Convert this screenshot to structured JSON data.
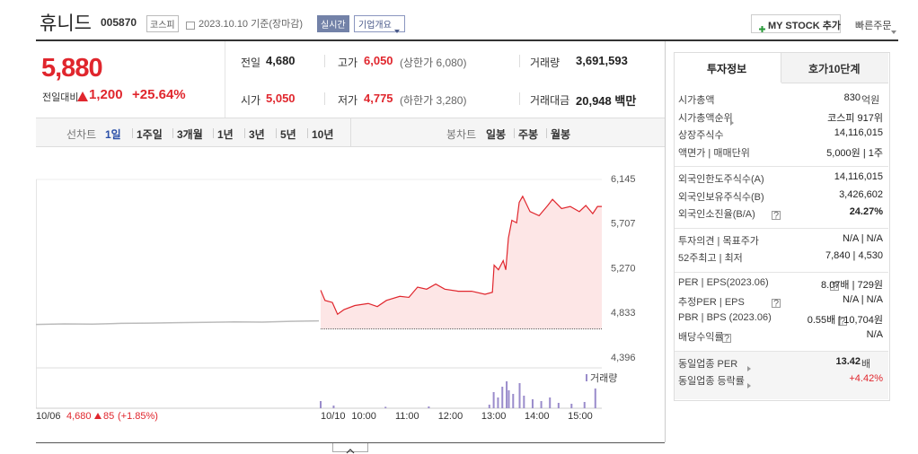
{
  "header": {
    "name": "휴니드",
    "code": "005870",
    "market": "코스피",
    "date": "2023.10.10 기준(장마감)",
    "realtime": "실시간",
    "overview": "기업개요",
    "mystock": "MY STOCK 추가",
    "quick_order": "빠른주문"
  },
  "price": {
    "current": "5,880",
    "change_label": "전일대비",
    "change": "1,200",
    "rate": "+25.64%"
  },
  "summary": [
    [
      {
        "label": "전일",
        "value": "4,680"
      },
      {
        "label": "고가",
        "value": "6,050",
        "note": "(상한가 6,080)"
      },
      {
        "label": "거래량",
        "value": "3,691,593"
      }
    ],
    [
      {
        "label": "시가",
        "value": "5,050"
      },
      {
        "label": "저가",
        "value": "4,775",
        "note": "(하한가 3,280)"
      },
      {
        "label": "거래대금",
        "value": "20,948 백만"
      }
    ]
  ],
  "tabs": {
    "line_label": "선차트",
    "line_periods": [
      "1일",
      "1주일",
      "3개월",
      "1년",
      "3년",
      "5년",
      "10년"
    ],
    "candle_label": "봉차트",
    "candle_periods": [
      "일봉",
      "주봉",
      "월봉"
    ]
  },
  "chart": {
    "type": "line",
    "ylim": [
      4396,
      6145
    ],
    "yticks": [
      {
        "value": 6145,
        "label": "6,145"
      },
      {
        "value": 5707,
        "label": "5,707"
      },
      {
        "value": 5270,
        "label": "5,270"
      },
      {
        "value": 4833,
        "label": "4,833"
      },
      {
        "value": 4396,
        "label": "4,396"
      }
    ],
    "xlim": [
      9,
      15.5
    ],
    "xticks": [
      {
        "value": 10,
        "label": "10:00"
      },
      {
        "value": 11,
        "label": "11:00"
      },
      {
        "value": 12,
        "label": "12:00"
      },
      {
        "value": 13,
        "label": "13:00"
      },
      {
        "value": 14,
        "label": "14:00"
      },
      {
        "value": 15,
        "label": "15:00"
      }
    ],
    "baseline": 4680,
    "color": "#e0262d",
    "fill": "#fde6e6",
    "prev": {
      "date": "10/06",
      "close": "4,680",
      "change": "85",
      "rate": "(+1.85%)",
      "color": "#bbbbbb",
      "values": [
        4725,
        4730,
        4728,
        4735,
        4738,
        4742,
        4745,
        4750,
        4748,
        4755,
        4760
      ]
    },
    "today": {
      "date": "10/10",
      "x": [
        9.0,
        9.1,
        9.27,
        9.39,
        9.54,
        9.79,
        10.1,
        10.31,
        10.52,
        10.83,
        11.04,
        11.24,
        11.45,
        11.66,
        11.87,
        12.18,
        12.49,
        12.8,
        12.97,
        13.01,
        13.11,
        13.22,
        13.28,
        13.34,
        13.42,
        13.53,
        13.59,
        13.67,
        13.84,
        14.05,
        14.25,
        14.36,
        14.57,
        14.77,
        14.98,
        15.13,
        15.29,
        15.4,
        15.5
      ],
      "values": [
        5060,
        4960,
        4940,
        4825,
        4870,
        4910,
        4930,
        4900,
        4960,
        5000,
        4990,
        5090,
        5070,
        5120,
        5070,
        5050,
        5050,
        5020,
        5040,
        5305,
        5260,
        5350,
        5260,
        5570,
        5745,
        5720,
        5920,
        5980,
        5830,
        5790,
        5890,
        5950,
        5860,
        5880,
        5830,
        5890,
        5810,
        5880,
        5880
      ]
    },
    "volume": {
      "name": "거래량",
      "color": "#9a8ccb",
      "ylim": [
        0,
        200000
      ],
      "x": [
        9.0,
        9.3,
        10.5,
        11.5,
        12.9,
        13.0,
        13.1,
        13.2,
        13.3,
        13.35,
        13.45,
        13.6,
        13.7,
        13.9,
        14.1,
        14.3,
        14.5,
        14.8,
        15.1,
        15.35
      ],
      "values": [
        40000,
        15000,
        8000,
        10000,
        20000,
        90000,
        60000,
        120000,
        150000,
        100000,
        80000,
        140000,
        70000,
        50000,
        40000,
        60000,
        30000,
        25000,
        35000,
        110000
      ]
    }
  },
  "info": {
    "tabs": [
      "투자정보",
      "호가10단계"
    ],
    "groups": [
      [
        {
          "label": "시가총액",
          "value": "830",
          "unit": "억원"
        },
        {
          "label": "시가총액순위",
          "arrow": true,
          "value": "코스피 917위"
        },
        {
          "label": "상장주식수",
          "value": "14,116,015"
        },
        {
          "label": "액면가 | 매매단위",
          "value": "5,000원 | 1주"
        }
      ],
      [
        {
          "label": "외국인한도주식수(A)",
          "value": "14,116,015"
        },
        {
          "label": "외국인보유주식수(B)",
          "value": "3,426,602"
        },
        {
          "label": "외국인소진율(B/A)",
          "help": true,
          "value": "24.27%",
          "bold": true
        }
      ],
      [
        {
          "label": "투자의견 | 목표주가",
          "value": "N/A | N/A"
        },
        {
          "label": "52주최고 | 최저",
          "value": "7,840 | 4,530"
        }
      ],
      [
        {
          "label": "PER | EPS(2023.06)",
          "help": true,
          "value": "8.07배 | 729원"
        },
        {
          "label": "추정PER | EPS",
          "help": true,
          "value": "N/A | N/A"
        },
        {
          "label": "PBR | BPS (2023.06)",
          "help": true,
          "value": "0.55배 | 10,704원"
        },
        {
          "label": "배당수익률",
          "help": true,
          "value": "N/A"
        }
      ],
      [
        {
          "label": "동일업종 PER",
          "arrow": true,
          "value": "13.42",
          "unit": "배",
          "bold": true
        },
        {
          "label": "동일업종 등락률",
          "arrow": true,
          "value": "+4.42%",
          "red": true
        }
      ]
    ]
  }
}
